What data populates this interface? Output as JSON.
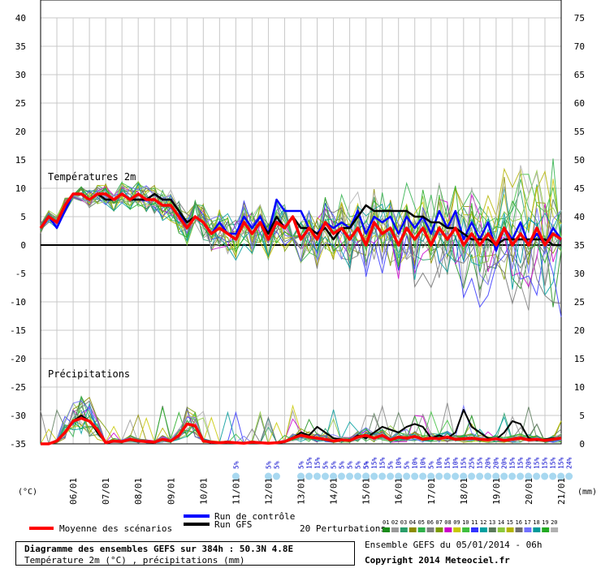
{
  "chart_data": {
    "type": "line",
    "title": "Diagramme des ensembles GEFS sur 384h : 50.3N 4.8E",
    "subtitle": "Température 2m (°C) , précipitations (mm)",
    "run_info": "Ensemble GEFS du 05/01/2014 - 06h",
    "copyright": "Copyright 2014 Meteociel.fr",
    "left_axis_label": "(°C)",
    "right_axis_label": "(mm)",
    "temp_label": "Températures 2m",
    "precip_label": "Précipitations",
    "left_ticks": [
      "40",
      "35",
      "30",
      "25",
      "20",
      "15",
      "10",
      "5",
      "0",
      "-5",
      "-10",
      "-15",
      "-20",
      "-25",
      "-30",
      "-35"
    ],
    "right_ticks": [
      "75",
      "70",
      "65",
      "60",
      "55",
      "50",
      "45",
      "40",
      "35",
      "30",
      "25",
      "20",
      "15",
      "10",
      "5",
      "0"
    ],
    "date_labels": [
      "06/01",
      "07/01",
      "08/01",
      "09/01",
      "10/01",
      "11/01",
      "12/01",
      "13/01",
      "14/01",
      "15/01",
      "16/01",
      "17/01",
      "18/01",
      "19/01",
      "20/01",
      "21/01"
    ],
    "ylim_temp": [
      -35,
      40
    ],
    "ylim_precip": [
      0,
      75
    ],
    "legend": {
      "mean": "Moyenne des scénarios",
      "control": "Run de contrôle",
      "gfs": "Run GFS",
      "perturbations": "20 Perturbations"
    },
    "perturbation_ids": [
      "01",
      "02",
      "03",
      "04",
      "05",
      "06",
      "07",
      "08",
      "09",
      "10",
      "11",
      "12",
      "13",
      "14",
      "15",
      "16",
      "17",
      "18",
      "19",
      "20"
    ],
    "perturbation_colors": [
      "#1a8c1a",
      "#999999",
      "#2a9d6a",
      "#8c8c00",
      "#2fb04a",
      "#808080",
      "#7b9b00",
      "#cc00cc",
      "#c8c800",
      "#3fbf3f",
      "#3333ff",
      "#00a0a0",
      "#5a7a5a",
      "#8cc83c",
      "#b4b400",
      "#6e6e6e",
      "#7070ff",
      "#009999",
      "#22aa22",
      "#b0b0b0"
    ],
    "snow_probabilities": [
      {
        "day": 11.0,
        "labels": [
          "5%"
        ]
      },
      {
        "day": 12.0,
        "labels": [
          "5%",
          "5%"
        ]
      },
      {
        "day": 13.0,
        "labels": [
          "5%",
          "15%",
          "15%",
          "5%",
          "5%",
          "5%",
          "5%",
          "5%",
          "5%"
        ]
      },
      {
        "day": 15.0,
        "labels": [
          "5%",
          "15%",
          "15%",
          "5%",
          "10%",
          "5%",
          "10%",
          "10%",
          "5%",
          "10%",
          "15%",
          "10%",
          "15%",
          "25%",
          "15%",
          "20%",
          "20%",
          "20%",
          "15%",
          "15%",
          "20%",
          "15%",
          "15%",
          "15%",
          "15%",
          "24%"
        ]
      }
    ],
    "mean_temp": {
      "x": [
        5.0,
        5.25,
        5.5,
        5.75,
        6.0,
        6.25,
        6.5,
        6.75,
        7.0,
        7.25,
        7.5,
        7.75,
        8.0,
        8.25,
        8.5,
        8.75,
        9.0,
        9.25,
        9.5,
        9.75,
        10.0,
        10.25,
        10.5,
        10.75,
        11.0,
        11.25,
        11.5,
        11.75,
        12.0,
        12.25,
        12.5,
        12.75,
        13.0,
        13.25,
        13.5,
        13.75,
        14.0,
        14.25,
        14.5,
        14.75,
        15.0,
        15.25,
        15.5,
        15.75,
        16.0,
        16.25,
        16.5,
        16.75,
        17.0,
        17.25,
        17.5,
        17.75,
        18.0,
        18.25,
        18.5,
        18.75,
        19.0,
        19.25,
        19.5,
        19.75,
        20.0,
        20.25,
        20.5,
        20.75,
        21.0
      ],
      "y": [
        3,
        5,
        4,
        7,
        9,
        9,
        8,
        9,
        9,
        8,
        9,
        8,
        9,
        8,
        8,
        7,
        7,
        5,
        3,
        5,
        4,
        2,
        3,
        2,
        1,
        4,
        2,
        4,
        1,
        4,
        3,
        5,
        1,
        3,
        1,
        4,
        2,
        3,
        1,
        3,
        0,
        4,
        2,
        3,
        0,
        3,
        1,
        3,
        0,
        3,
        1,
        3,
        0,
        2,
        0,
        2,
        0,
        3,
        0,
        2,
        0,
        3,
        0,
        2,
        1
      ]
    },
    "mean_precip": {
      "x": [
        5.0,
        5.25,
        5.5,
        5.75,
        6.0,
        6.25,
        6.5,
        6.75,
        7.0,
        7.25,
        7.5,
        7.75,
        8.0,
        8.25,
        8.5,
        8.75,
        9.0,
        9.25,
        9.5,
        9.75,
        10.0,
        10.25,
        10.5,
        10.75,
        11.0,
        11.25,
        11.5,
        11.75,
        12.0,
        12.25,
        12.5,
        12.75,
        13.0,
        13.25,
        13.5,
        13.75,
        14.0,
        14.25,
        14.5,
        14.75,
        15.0,
        15.25,
        15.5,
        15.75,
        16.0,
        16.25,
        16.5,
        16.75,
        17.0,
        17.25,
        17.5,
        17.75,
        18.0,
        18.25,
        18.5,
        18.75,
        19.0,
        19.25,
        19.5,
        19.75,
        20.0,
        20.25,
        20.5,
        20.75,
        21.0
      ],
      "y": [
        0,
        0,
        0.5,
        2,
        4,
        4.5,
        4,
        2.5,
        0.2,
        0.5,
        0.4,
        0.8,
        0.5,
        0.4,
        0.3,
        0.8,
        0.5,
        1.5,
        3.5,
        3.2,
        0.5,
        0.3,
        0.2,
        0.3,
        0.2,
        0.1,
        0.3,
        0.2,
        0.1,
        0.2,
        0.4,
        1,
        1.5,
        1.2,
        1.0,
        0.8,
        0.5,
        0.7,
        0.6,
        1.2,
        1.5,
        1.0,
        1.5,
        0.7,
        1.2,
        1.0,
        1.3,
        0.8,
        1.0,
        0.9,
        1.2,
        0.8,
        0.9,
        1.0,
        0.8,
        0.7,
        0.9,
        0.6,
        0.8,
        1.0,
        0.7,
        0.8,
        0.6,
        0.8,
        1.0
      ]
    },
    "control_temp": {
      "x": [
        5.0,
        5.25,
        5.5,
        5.75,
        6.0,
        6.25,
        6.5,
        6.75,
        7.0,
        7.25,
        7.5,
        7.75,
        8.0,
        8.25,
        8.5,
        8.75,
        9.0,
        9.25,
        9.5,
        9.75,
        10.0,
        10.25,
        10.5,
        10.75,
        11.0,
        11.25,
        11.5,
        11.75,
        12.0,
        12.25,
        12.5,
        12.75,
        13.0,
        13.25,
        13.5,
        13.75,
        14.0,
        14.25,
        14.5,
        14.75,
        15.0,
        15.25,
        15.5,
        15.75,
        16.0,
        16.25,
        16.5,
        16.75,
        17.0,
        17.25,
        17.5,
        17.75,
        18.0,
        18.25,
        18.5,
        18.75,
        19.0,
        19.25,
        19.5,
        19.75,
        20.0,
        20.25,
        20.5,
        20.75,
        21.0
      ],
      "y": [
        3,
        5,
        3,
        6,
        9,
        9,
        8,
        9,
        8,
        8,
        9,
        8,
        8,
        8,
        9,
        8,
        8,
        6,
        3,
        5,
        4,
        2,
        4,
        2,
        2,
        5,
        3,
        5,
        2,
        8,
        6,
        6,
        6,
        3,
        2,
        4,
        3,
        4,
        3,
        6,
        2,
        5,
        4,
        5,
        2,
        5,
        3,
        5,
        2,
        6,
        3,
        6,
        1,
        4,
        1,
        4,
        -1,
        3,
        1,
        4,
        0,
        2,
        0,
        3,
        1
      ]
    },
    "gfs_temp": {
      "x": [
        5.0,
        5.25,
        5.5,
        5.75,
        6.0,
        6.25,
        6.5,
        6.75,
        7.0,
        7.25,
        7.5,
        7.75,
        8.0,
        8.25,
        8.5,
        8.75,
        9.0,
        9.25,
        9.5,
        9.75,
        10.0,
        10.25,
        10.5,
        10.75,
        11.0,
        11.25,
        11.5,
        11.75,
        12.0,
        12.25,
        12.5,
        12.75,
        13.0,
        13.25,
        13.5,
        13.75,
        14.0,
        14.25,
        14.5,
        14.75,
        15.0,
        15.25,
        15.5,
        15.75,
        16.0,
        16.25,
        16.5,
        16.75,
        17.0,
        17.25,
        17.5,
        17.75,
        18.0,
        18.25,
        18.5,
        18.75,
        19.0,
        19.25,
        19.5,
        19.75,
        20.0,
        20.25,
        20.5,
        20.75,
        21.0
      ],
      "y": [
        3,
        5,
        4,
        7,
        9,
        9,
        8,
        9,
        8,
        8,
        9,
        8,
        8,
        8,
        9,
        8,
        8,
        6,
        4,
        5,
        4,
        2,
        3,
        2,
        1,
        4,
        2,
        4,
        2,
        5,
        3,
        5,
        3,
        3,
        2,
        3,
        1,
        3,
        3,
        5,
        7,
        6,
        6,
        6,
        6,
        6,
        5,
        5,
        4,
        4,
        3,
        3,
        2,
        1,
        1,
        1,
        0,
        1,
        1,
        1,
        1,
        1,
        1,
        0,
        0
      ]
    },
    "gfs_precip": {
      "x": [
        5.0,
        5.25,
        5.5,
        5.75,
        6.0,
        6.25,
        6.5,
        6.75,
        7.0,
        7.25,
        7.5,
        7.75,
        8.0,
        8.25,
        8.5,
        8.75,
        9.0,
        9.25,
        9.5,
        9.75,
        10.0,
        10.25,
        10.5,
        10.75,
        11.0,
        11.25,
        11.5,
        11.75,
        12.0,
        12.25,
        12.5,
        12.75,
        13.0,
        13.25,
        13.5,
        13.75,
        14.0,
        14.25,
        14.5,
        14.75,
        15.0,
        15.25,
        15.5,
        15.75,
        16.0,
        16.25,
        16.5,
        16.75,
        17.0,
        17.25,
        17.5,
        17.75,
        18.0,
        18.25,
        18.5,
        18.75,
        19.0,
        19.25,
        19.5,
        19.75,
        20.0,
        20.25,
        20.5,
        20.75,
        21.0
      ],
      "y": [
        0,
        0,
        0.5,
        2,
        4,
        5,
        4,
        2,
        0.2,
        0.5,
        0.4,
        0.8,
        0.5,
        0.4,
        0.3,
        0.8,
        0.5,
        1.5,
        3.5,
        3,
        0.5,
        0.3,
        0.2,
        0.3,
        0.2,
        0.1,
        0.3,
        0.2,
        0.1,
        0.2,
        0.4,
        1,
        2,
        1.5,
        3,
        2,
        1,
        0.8,
        0.6,
        1.5,
        1,
        2,
        3,
        2.5,
        2,
        3,
        3.5,
        3,
        1,
        1.5,
        1,
        2,
        6,
        3,
        2,
        1,
        0.8,
        2,
        4,
        3.5,
        1,
        0.6,
        0.8,
        1,
        1
      ]
    }
  }
}
